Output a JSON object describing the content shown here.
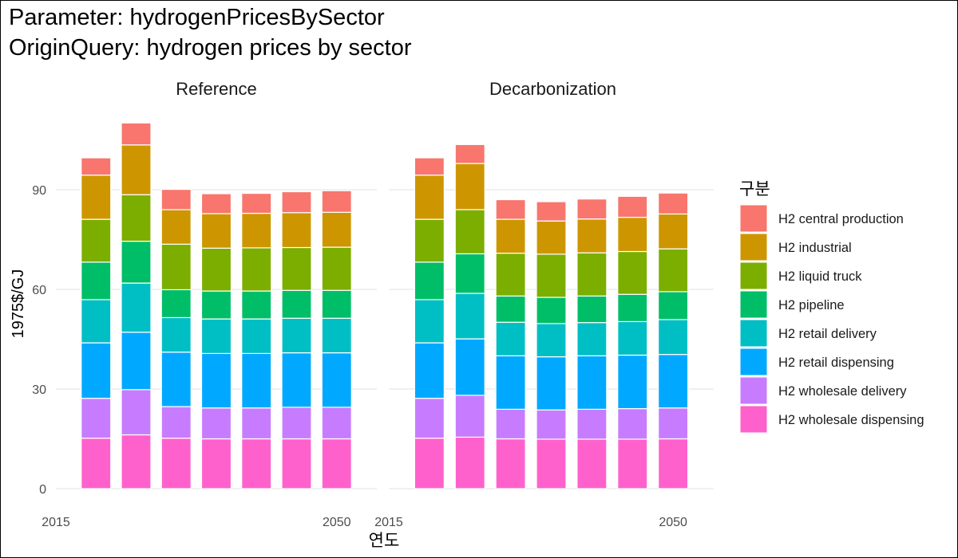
{
  "title": "Parameter: hydrogenPricesBySector",
  "subtitle": "OriginQuery: hydrogen prices by sector",
  "chart_data": {
    "type": "bar",
    "stacked": true,
    "faceted": true,
    "xlabel": "연도",
    "ylabel": "1975$/GJ",
    "ylim": [
      0,
      110
    ],
    "xlim": [
      2015,
      2055
    ],
    "x_ticks": [
      2015,
      2050
    ],
    "y_ticks": [
      0,
      30,
      60,
      90
    ],
    "grid": true,
    "legend_title": "구분",
    "legend_position": "right",
    "years": [
      2020,
      2025,
      2030,
      2035,
      2040,
      2045,
      2050
    ],
    "series": [
      {
        "name": "H2 central production",
        "color": "#F8766D"
      },
      {
        "name": "H2 industrial",
        "color": "#CD9600"
      },
      {
        "name": "H2 liquid truck",
        "color": "#7CAE00"
      },
      {
        "name": "H2 pipeline",
        "color": "#00BE67"
      },
      {
        "name": "H2 retail delivery",
        "color": "#00BFC4"
      },
      {
        "name": "H2 retail dispensing",
        "color": "#00A9FF"
      },
      {
        "name": "H2 wholesale delivery",
        "color": "#C77CFF"
      },
      {
        "name": "H2 wholesale dispensing",
        "color": "#FF61CC"
      }
    ],
    "facets": [
      {
        "name": "Reference",
        "values": {
          "H2 wholesale dispensing": [
            15.2,
            16.2,
            15.2,
            15.0,
            15.0,
            15.0,
            15.0
          ],
          "H2 wholesale delivery": [
            12.0,
            13.6,
            9.5,
            9.3,
            9.3,
            9.5,
            9.5
          ],
          "H2 retail dispensing": [
            16.7,
            17.3,
            16.4,
            16.4,
            16.4,
            16.4,
            16.4
          ],
          "H2 retail delivery": [
            13.0,
            14.8,
            10.4,
            10.4,
            10.4,
            10.4,
            10.4
          ],
          "H2 pipeline": [
            11.3,
            12.6,
            8.4,
            8.4,
            8.4,
            8.4,
            8.4
          ],
          "H2 liquid truck": [
            12.9,
            14.0,
            13.7,
            12.9,
            13.0,
            12.9,
            13.0
          ],
          "H2 industrial": [
            13.3,
            15.0,
            10.4,
            10.4,
            10.4,
            10.5,
            10.5
          ],
          "H2 central production": [
            5.2,
            6.6,
            6.1,
            6.0,
            6.0,
            6.3,
            6.5
          ]
        }
      },
      {
        "name": "Decarbonization",
        "values": {
          "H2 wholesale dispensing": [
            15.2,
            15.5,
            15.0,
            14.9,
            14.9,
            14.9,
            15.0
          ],
          "H2 wholesale delivery": [
            12.0,
            12.6,
            8.9,
            8.8,
            9.0,
            9.2,
            9.3
          ],
          "H2 retail dispensing": [
            16.7,
            17.0,
            16.1,
            16.0,
            16.1,
            16.1,
            16.1
          ],
          "H2 retail delivery": [
            13.0,
            13.7,
            10.1,
            10.0,
            10.0,
            10.1,
            10.5
          ],
          "H2 pipeline": [
            11.3,
            11.9,
            7.9,
            7.9,
            8.0,
            8.2,
            8.4
          ],
          "H2 liquid truck": [
            12.9,
            13.3,
            12.9,
            13.0,
            13.0,
            12.9,
            12.9
          ],
          "H2 industrial": [
            13.3,
            13.9,
            10.2,
            10.0,
            10.2,
            10.3,
            10.5
          ],
          "H2 central production": [
            5.2,
            5.7,
            5.9,
            5.8,
            6.0,
            6.3,
            6.3
          ]
        }
      }
    ]
  }
}
